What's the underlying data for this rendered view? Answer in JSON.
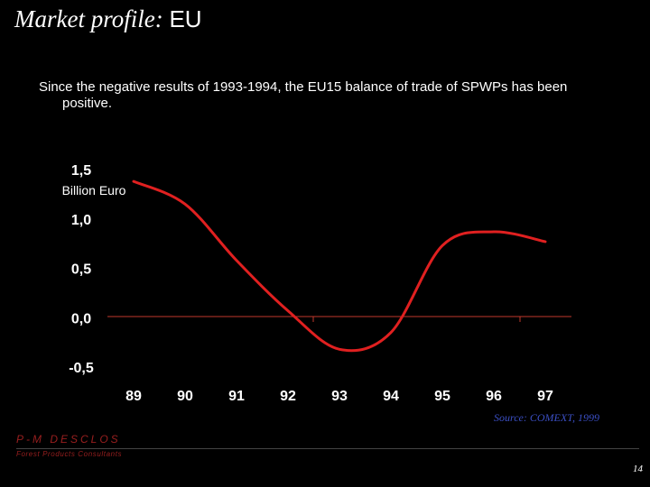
{
  "slide": {
    "title_italic": "Market profile: ",
    "title_region": "EU",
    "subtitle": "Since the negative results of 1993-1994, the EU15 balance of trade of SPWPs has been positive.",
    "source": "Source: COMEXT, 1999",
    "company_name": "P-M DESCLOS",
    "company_tagline": "Forest Products Consultants",
    "page_number": "14"
  },
  "colors": {
    "background": "#000000",
    "text": "#ffffff",
    "line": "#e02020",
    "axis": "#c0392b",
    "source": "#3b4fc4",
    "brand": "#9a1f1f"
  },
  "chart_data": {
    "type": "line",
    "title": "",
    "xlabel": "",
    "ylabel": "Billion Euro",
    "categories": [
      "89",
      "90",
      "91",
      "92",
      "93",
      "94",
      "95",
      "96",
      "97"
    ],
    "y_ticks": [
      "1,5",
      "1,0",
      "0,5",
      "0,0",
      "-0,5"
    ],
    "y_tick_values": [
      1.5,
      1.0,
      0.5,
      0.0,
      -0.5
    ],
    "ylim": [
      -0.5,
      1.5
    ],
    "grid": false,
    "series": [
      {
        "values": [
          1.38,
          1.15,
          0.58,
          0.07,
          -0.32,
          -0.15,
          0.73,
          0.87,
          0.77
        ]
      }
    ]
  }
}
